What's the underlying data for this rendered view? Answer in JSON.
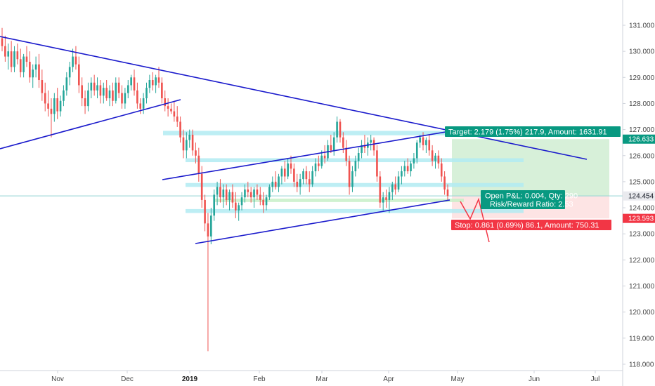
{
  "chart_data": {
    "type": "candlestick",
    "price_axis": {
      "ticks": [
        "131.000",
        "130.000",
        "129.000",
        "128.000",
        "127.000",
        "126.000",
        "125.000",
        "124.000",
        "123.000",
        "122.000",
        "121.000",
        "120.000",
        "119.000",
        "118.000"
      ],
      "tick_values": [
        131,
        130,
        129,
        128,
        127,
        126,
        125,
        124,
        123,
        122,
        121,
        120,
        119,
        118
      ],
      "range": [
        117.8,
        131.6
      ]
    },
    "time_axis": {
      "labels": [
        "Nov",
        "Dec",
        "2019",
        "Feb",
        "Mar",
        "Apr",
        "May",
        "Jun",
        "Jul"
      ],
      "year_label": "2019"
    },
    "current_price": {
      "label": "124.454",
      "value": 124.454
    },
    "target_price": {
      "label": "126.633",
      "value": 126.633
    },
    "stop_price": {
      "label": "123.593",
      "value": 123.593
    },
    "position": {
      "target_text": "Target: 2.179 (1.75%) 217.9, Amount: 1631.91",
      "open_pl_text": "Open P&L: 0.004, Qty: 290",
      "risk_reward_text": "Risk/Reward Ratio: 2.53",
      "stop_text": "Stop: 0.861 (0.69%) 86.1, Amount: 750.31"
    },
    "colors": {
      "up": "#26a69a",
      "down": "#ef5350",
      "trendline": "#1a1acc",
      "zone": "#b2ebf2",
      "green_label": "#089981",
      "red_label": "#f23645",
      "profit_fill": "#d7f0d9",
      "loss_fill": "#fde4e4"
    },
    "candles": [
      [
        130.5,
        130.9,
        130.0,
        130.2
      ],
      [
        130.2,
        130.6,
        129.6,
        129.8
      ],
      [
        129.8,
        130.3,
        129.3,
        130.0
      ],
      [
        130.0,
        130.4,
        129.2,
        129.4
      ],
      [
        129.4,
        130.2,
        129.2,
        130.0
      ],
      [
        130.0,
        130.3,
        129.5,
        129.7
      ],
      [
        129.7,
        130.1,
        129.0,
        129.2
      ],
      [
        129.2,
        129.9,
        129.0,
        129.8
      ],
      [
        129.8,
        130.2,
        129.4,
        129.6
      ],
      [
        129.6,
        130.0,
        128.8,
        129.0
      ],
      [
        129.0,
        129.5,
        128.6,
        129.3
      ],
      [
        129.3,
        129.8,
        129.0,
        129.5
      ],
      [
        129.5,
        129.9,
        128.6,
        128.9
      ],
      [
        128.9,
        129.3,
        128.1,
        128.4
      ],
      [
        128.4,
        128.8,
        127.7,
        128.0
      ],
      [
        128.0,
        128.5,
        127.5,
        127.8
      ],
      [
        127.8,
        128.2,
        126.7,
        127.6
      ],
      [
        127.6,
        128.4,
        127.3,
        128.2
      ],
      [
        128.2,
        128.6,
        127.4,
        127.7
      ],
      [
        127.7,
        128.3,
        127.5,
        128.1
      ],
      [
        128.1,
        128.7,
        127.9,
        128.5
      ],
      [
        128.5,
        129.2,
        128.3,
        129.0
      ],
      [
        129.0,
        129.6,
        128.7,
        129.4
      ],
      [
        129.4,
        130.1,
        129.2,
        129.8
      ],
      [
        129.8,
        130.2,
        129.3,
        129.5
      ],
      [
        129.5,
        129.8,
        128.4,
        128.7
      ],
      [
        128.7,
        129.0,
        127.9,
        128.2
      ],
      [
        128.2,
        128.5,
        127.6,
        127.9
      ],
      [
        127.9,
        128.8,
        127.7,
        128.5
      ],
      [
        128.5,
        129.0,
        128.2,
        128.8
      ],
      [
        128.8,
        129.1,
        128.3,
        128.5
      ],
      [
        128.5,
        129.0,
        128.2,
        128.7
      ],
      [
        128.7,
        128.9,
        128.0,
        128.3
      ],
      [
        128.3,
        128.8,
        128.0,
        128.6
      ],
      [
        128.6,
        128.9,
        128.1,
        128.2
      ],
      [
        128.2,
        128.7,
        127.9,
        128.5
      ],
      [
        128.5,
        128.8,
        127.9,
        128.1
      ],
      [
        128.1,
        129.0,
        128.0,
        128.8
      ],
      [
        128.8,
        129.0,
        128.2,
        128.4
      ],
      [
        128.4,
        128.7,
        127.8,
        128.0
      ],
      [
        128.0,
        128.6,
        127.8,
        128.4
      ],
      [
        128.4,
        128.9,
        128.2,
        128.7
      ],
      [
        128.7,
        129.1,
        128.5,
        129.0
      ],
      [
        129.0,
        129.3,
        128.3,
        128.5
      ],
      [
        128.5,
        128.8,
        127.8,
        128.0
      ],
      [
        128.0,
        128.2,
        127.6,
        127.8
      ],
      [
        127.8,
        128.4,
        127.6,
        128.2
      ],
      [
        128.2,
        128.8,
        128.0,
        128.6
      ],
      [
        128.6,
        129.1,
        128.4,
        128.9
      ],
      [
        128.9,
        129.2,
        128.5,
        128.7
      ],
      [
        128.7,
        129.1,
        128.4,
        129.0
      ],
      [
        129.0,
        129.4,
        128.6,
        128.8
      ],
      [
        128.8,
        129.0,
        128.0,
        128.2
      ],
      [
        128.2,
        128.5,
        127.7,
        127.9
      ],
      [
        127.9,
        128.2,
        127.5,
        127.8
      ],
      [
        127.8,
        128.0,
        127.6,
        127.7
      ],
      [
        127.7,
        128.1,
        127.3,
        127.5
      ],
      [
        127.5,
        127.9,
        127.1,
        127.3
      ],
      [
        127.3,
        127.5,
        126.5,
        126.7
      ],
      [
        126.7,
        127.0,
        125.9,
        126.2
      ],
      [
        126.2,
        126.9,
        125.9,
        126.6
      ],
      [
        126.6,
        127.0,
        126.3,
        126.8
      ],
      [
        126.8,
        127.0,
        126.0,
        126.2
      ],
      [
        126.2,
        126.5,
        125.7,
        126.0
      ],
      [
        126.0,
        126.3,
        125.0,
        125.3
      ],
      [
        125.3,
        125.6,
        124.0,
        124.3
      ],
      [
        124.3,
        124.5,
        123.1,
        123.4
      ],
      [
        123.4,
        123.8,
        118.5,
        122.9
      ],
      [
        122.9,
        124.0,
        122.6,
        123.7
      ],
      [
        123.7,
        124.7,
        123.5,
        124.5
      ],
      [
        124.5,
        125.0,
        124.1,
        124.8
      ],
      [
        124.8,
        125.1,
        124.2,
        124.4
      ],
      [
        124.4,
        124.9,
        124.0,
        124.7
      ],
      [
        124.7,
        124.9,
        124.1,
        124.3
      ],
      [
        124.3,
        124.7,
        123.9,
        124.6
      ],
      [
        124.6,
        124.9,
        124.0,
        124.2
      ],
      [
        124.2,
        124.6,
        123.6,
        123.9
      ],
      [
        123.9,
        124.2,
        123.5,
        124.1
      ],
      [
        124.1,
        124.6,
        123.9,
        124.4
      ],
      [
        124.4,
        124.9,
        124.2,
        124.7
      ],
      [
        124.7,
        125.0,
        124.4,
        124.6
      ],
      [
        124.6,
        124.8,
        124.2,
        124.4
      ],
      [
        124.4,
        124.8,
        124.0,
        124.7
      ],
      [
        124.7,
        124.9,
        124.3,
        124.5
      ],
      [
        124.5,
        124.8,
        124.1,
        124.3
      ],
      [
        124.3,
        124.6,
        123.8,
        124.1
      ],
      [
        124.1,
        124.5,
        123.9,
        124.4
      ],
      [
        124.4,
        124.9,
        124.3,
        124.8
      ],
      [
        124.8,
        125.2,
        124.6,
        125.0
      ],
      [
        125.0,
        125.4,
        124.7,
        124.8
      ],
      [
        124.8,
        125.3,
        124.6,
        125.2
      ],
      [
        125.2,
        125.6,
        124.9,
        125.5
      ],
      [
        125.5,
        125.8,
        125.0,
        125.2
      ],
      [
        125.2,
        125.9,
        125.1,
        125.7
      ],
      [
        125.7,
        126.0,
        125.3,
        125.5
      ],
      [
        125.5,
        125.7,
        124.8,
        125.0
      ],
      [
        125.0,
        125.3,
        124.6,
        124.8
      ],
      [
        124.8,
        125.3,
        124.5,
        125.1
      ],
      [
        125.1,
        125.5,
        124.9,
        125.4
      ],
      [
        125.4,
        125.6,
        124.9,
        125.1
      ],
      [
        125.1,
        125.4,
        124.6,
        124.9
      ],
      [
        124.9,
        125.6,
        124.8,
        125.4
      ],
      [
        125.4,
        125.9,
        125.2,
        125.7
      ],
      [
        125.7,
        126.0,
        125.4,
        125.6
      ],
      [
        125.6,
        126.2,
        125.5,
        126.0
      ],
      [
        126.0,
        126.4,
        125.7,
        125.9
      ],
      [
        125.9,
        126.6,
        125.8,
        126.4
      ],
      [
        126.4,
        126.8,
        126.1,
        126.2
      ],
      [
        126.2,
        126.9,
        126.0,
        126.7
      ],
      [
        126.7,
        127.5,
        126.5,
        127.3
      ],
      [
        127.3,
        127.4,
        126.5,
        126.7
      ],
      [
        126.7,
        126.9,
        126.1,
        126.3
      ],
      [
        126.3,
        126.6,
        125.6,
        125.8
      ],
      [
        125.8,
        126.0,
        124.5,
        124.8
      ],
      [
        124.8,
        125.6,
        124.6,
        125.4
      ],
      [
        125.4,
        126.0,
        125.2,
        125.8
      ],
      [
        125.8,
        126.3,
        125.5,
        126.1
      ],
      [
        126.1,
        126.6,
        125.9,
        126.4
      ],
      [
        126.4,
        126.8,
        126.1,
        126.3
      ],
      [
        126.3,
        126.7,
        126.0,
        126.5
      ],
      [
        126.5,
        126.8,
        126.2,
        126.6
      ],
      [
        126.6,
        126.7,
        126.0,
        126.2
      ],
      [
        126.2,
        126.4,
        125.0,
        125.2
      ],
      [
        125.2,
        125.4,
        124.0,
        124.2
      ],
      [
        124.2,
        124.6,
        123.9,
        124.4
      ],
      [
        124.4,
        124.7,
        124.0,
        124.3
      ],
      [
        124.3,
        124.8,
        123.8,
        124.6
      ],
      [
        124.6,
        125.0,
        124.3,
        124.9
      ],
      [
        124.9,
        125.2,
        124.5,
        124.7
      ],
      [
        124.7,
        125.4,
        124.6,
        125.2
      ],
      [
        125.2,
        125.6,
        124.9,
        125.4
      ],
      [
        125.4,
        125.8,
        125.2,
        125.6
      ],
      [
        125.6,
        125.9,
        125.3,
        125.4
      ],
      [
        125.4,
        125.8,
        125.2,
        125.7
      ],
      [
        125.7,
        126.1,
        125.5,
        125.9
      ],
      [
        125.9,
        126.6,
        125.7,
        126.5
      ],
      [
        126.5,
        126.8,
        126.3,
        126.7
      ],
      [
        126.7,
        126.9,
        126.2,
        126.4
      ],
      [
        126.4,
        126.7,
        126.1,
        126.6
      ],
      [
        126.6,
        126.8,
        126.0,
        126.2
      ],
      [
        126.2,
        126.4,
        125.6,
        125.8
      ],
      [
        125.8,
        126.1,
        125.5,
        126.0
      ],
      [
        126.0,
        126.2,
        125.5,
        125.7
      ],
      [
        125.7,
        125.9,
        125.0,
        125.2
      ],
      [
        125.2,
        125.4,
        124.5,
        124.7
      ],
      [
        124.7,
        124.9,
        124.3,
        124.454
      ]
    ]
  }
}
